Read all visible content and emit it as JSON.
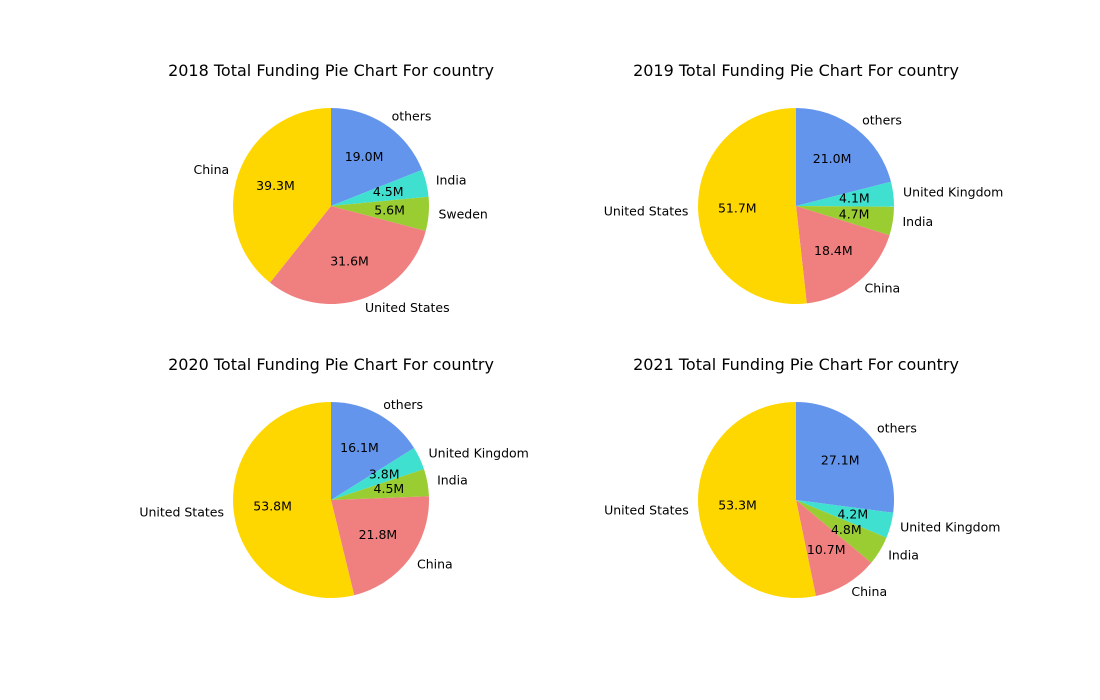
{
  "chart_data": [
    {
      "type": "pie",
      "title": "2018 Total Funding Pie Chart For country",
      "slices": [
        {
          "label": "others",
          "value": 19.0,
          "display": "19.0M",
          "color": "#6495ED"
        },
        {
          "label": "India",
          "value": 4.5,
          "display": "4.5M",
          "color": "#40E0D0"
        },
        {
          "label": "Sweden",
          "value": 5.6,
          "display": "5.6M",
          "color": "#9ACD32"
        },
        {
          "label": "United States",
          "value": 31.6,
          "display": "31.6M",
          "color": "#F08080"
        },
        {
          "label": "China",
          "value": 39.3,
          "display": "39.3M",
          "color": "#FFD700"
        }
      ]
    },
    {
      "type": "pie",
      "title": "2019 Total Funding Pie Chart For country",
      "slices": [
        {
          "label": "others",
          "value": 21.0,
          "display": "21.0M",
          "color": "#6495ED"
        },
        {
          "label": "United Kingdom",
          "value": 4.1,
          "display": "4.1M",
          "color": "#40E0D0"
        },
        {
          "label": "India",
          "value": 4.7,
          "display": "4.7M",
          "color": "#9ACD32"
        },
        {
          "label": "China",
          "value": 18.4,
          "display": "18.4M",
          "color": "#F08080"
        },
        {
          "label": "United States",
          "value": 51.7,
          "display": "51.7M",
          "color": "#FFD700"
        }
      ]
    },
    {
      "type": "pie",
      "title": "2020 Total Funding Pie Chart For country",
      "slices": [
        {
          "label": "others",
          "value": 16.1,
          "display": "16.1M",
          "color": "#6495ED"
        },
        {
          "label": "United Kingdom",
          "value": 3.8,
          "display": "3.8M",
          "color": "#40E0D0"
        },
        {
          "label": "India",
          "value": 4.5,
          "display": "4.5M",
          "color": "#9ACD32"
        },
        {
          "label": "China",
          "value": 21.8,
          "display": "21.8M",
          "color": "#F08080"
        },
        {
          "label": "United States",
          "value": 53.8,
          "display": "53.8M",
          "color": "#FFD700"
        }
      ]
    },
    {
      "type": "pie",
      "title": "2021 Total Funding Pie Chart For country",
      "slices": [
        {
          "label": "others",
          "value": 27.1,
          "display": "27.1M",
          "color": "#6495ED"
        },
        {
          "label": "United Kingdom",
          "value": 4.2,
          "display": "4.2M",
          "color": "#40E0D0"
        },
        {
          "label": "India",
          "value": 4.8,
          "display": "4.8M",
          "color": "#9ACD32"
        },
        {
          "label": "China",
          "value": 10.7,
          "display": "10.7M",
          "color": "#F08080"
        },
        {
          "label": "United States",
          "value": 53.3,
          "display": "53.3M",
          "color": "#FFD700"
        }
      ]
    }
  ]
}
